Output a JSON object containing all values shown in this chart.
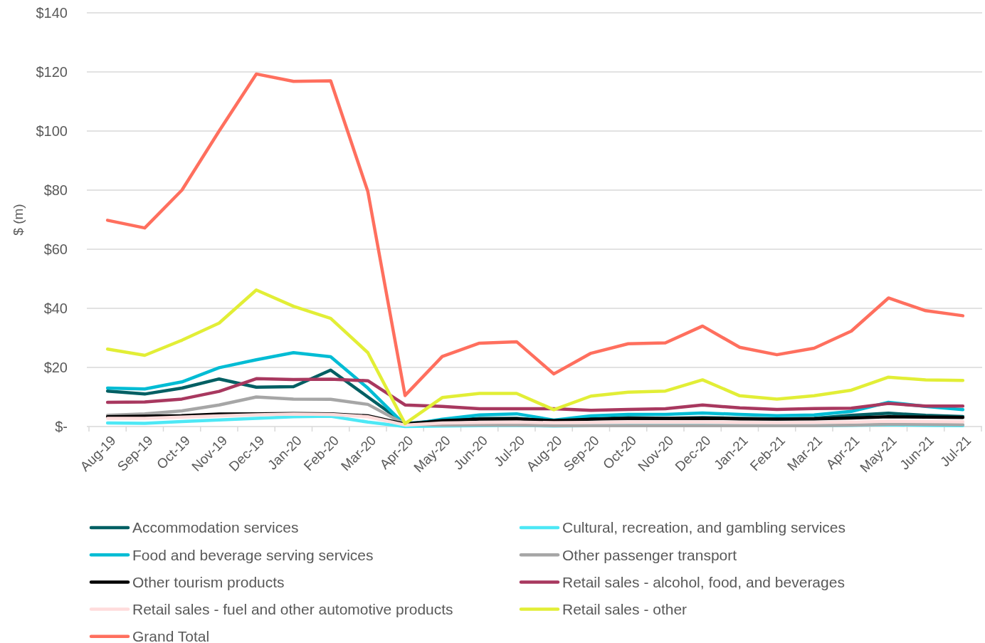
{
  "chart_data": {
    "type": "line",
    "ylabel": "$ (m)",
    "categories": [
      "Aug-19",
      "Sep-19",
      "Oct-19",
      "Nov-19",
      "Dec-19",
      "Jan-20",
      "Feb-20",
      "Mar-20",
      "Apr-20",
      "May-20",
      "Jun-20",
      "Jul-20",
      "Aug-20",
      "Sep-20",
      "Oct-20",
      "Nov-20",
      "Dec-20",
      "Jan-21",
      "Feb-21",
      "Mar-21",
      "Apr-21",
      "May-21",
      "Jun-21",
      "Jul-21"
    ],
    "ylim": [
      0,
      140
    ],
    "yticks": [
      {
        "value": 0,
        "label": "$-"
      },
      {
        "value": 20,
        "label": "$20"
      },
      {
        "value": 40,
        "label": "$40"
      },
      {
        "value": 60,
        "label": "$60"
      },
      {
        "value": 80,
        "label": "$80"
      },
      {
        "value": 100,
        "label": "$100"
      },
      {
        "value": 120,
        "label": "$120"
      },
      {
        "value": 140,
        "label": "$140"
      }
    ],
    "grid": "y",
    "legend": "bottom",
    "marker": "none",
    "line_style": "solid",
    "series": [
      {
        "name": "Accommodation services",
        "color": "#005f63",
        "values": [
          12,
          11,
          13,
          16.1,
          13.3,
          13.5,
          19.1,
          10,
          1,
          2,
          2.7,
          2.8,
          1.8,
          2.6,
          3,
          2.8,
          3,
          2.8,
          2.6,
          2.8,
          3.8,
          4.5,
          3.8,
          3.4
        ]
      },
      {
        "name": "Cultural, recreation, and gambling services",
        "color": "#4de8f5",
        "values": [
          1.2,
          1.1,
          1.7,
          2.2,
          2.8,
          3.3,
          3.5,
          1.5,
          0,
          0.2,
          0.3,
          0.4,
          0.2,
          0.3,
          0.3,
          0.3,
          0.3,
          0.3,
          0.3,
          0.3,
          0.4,
          0.6,
          0.4,
          0.3
        ]
      },
      {
        "name": "Food and beverage serving services",
        "color": "#00bcd4",
        "values": [
          13,
          12.7,
          15.1,
          19.9,
          22.6,
          25,
          23.6,
          13,
          0.5,
          2.5,
          3.9,
          4.3,
          2.2,
          3.6,
          4.1,
          4.1,
          4.6,
          4.1,
          3.7,
          3.9,
          5.1,
          8.2,
          6.8,
          5.7
        ]
      },
      {
        "name": "Other passenger transport",
        "color": "#a6a6a6",
        "values": [
          3.8,
          4.3,
          5.3,
          7.3,
          10,
          9.3,
          9.2,
          7.5,
          0.8,
          0.5,
          0.5,
          0.5,
          0.3,
          0.3,
          0.3,
          0.3,
          0.3,
          0.3,
          0.3,
          0.3,
          0.5,
          0.8,
          0.7,
          0.6
        ]
      },
      {
        "name": "Other tourism products",
        "color": "#000000",
        "values": [
          3.3,
          3.5,
          3.7,
          4.2,
          4.3,
          4.4,
          4.3,
          3.6,
          0.8,
          2,
          2.5,
          2.6,
          2,
          2.5,
          2.7,
          2.7,
          2.8,
          2.6,
          2.5,
          2.6,
          2.9,
          3.3,
          3.2,
          3.1
        ]
      },
      {
        "name": "Retail sales - alcohol, food, and beverages",
        "color": "#a8385f",
        "values": [
          8.2,
          8.3,
          9.3,
          11.9,
          16.2,
          15.9,
          16,
          15.5,
          7.3,
          6.8,
          6,
          6,
          6,
          5.5,
          5.8,
          6,
          7.3,
          6.3,
          5.8,
          6.1,
          6.2,
          7.8,
          6.9,
          6.9
        ]
      },
      {
        "name": "Retail sales - fuel and other automotive products",
        "color": "#ffdcdc",
        "values": [
          2.8,
          2.8,
          3.2,
          3.6,
          4,
          4.2,
          4.1,
          3.3,
          0.5,
          1.2,
          1.4,
          1.5,
          1.3,
          1.4,
          1.5,
          1.5,
          1.5,
          1.4,
          1.3,
          1.4,
          1.5,
          1.8,
          1.7,
          1.6
        ]
      },
      {
        "name": "Retail sales - other",
        "color": "#e2ee36",
        "values": [
          26.2,
          24.1,
          29.2,
          35,
          46.2,
          40.7,
          36.6,
          25,
          1,
          9.8,
          11.2,
          11.2,
          5.7,
          10.3,
          11.6,
          12,
          15.8,
          10.4,
          9.3,
          10.4,
          12.3,
          16.7,
          15.8,
          15.6
        ]
      },
      {
        "name": "Grand Total",
        "color": "#ff6f5e",
        "values": [
          69.8,
          67.2,
          80,
          100,
          119.3,
          116.8,
          117,
          79.5,
          10.5,
          23.7,
          28.2,
          28.7,
          17.8,
          24.8,
          28,
          28.3,
          34,
          26.8,
          24.3,
          26.5,
          32.3,
          43.5,
          39.2,
          37.5
        ]
      }
    ]
  }
}
